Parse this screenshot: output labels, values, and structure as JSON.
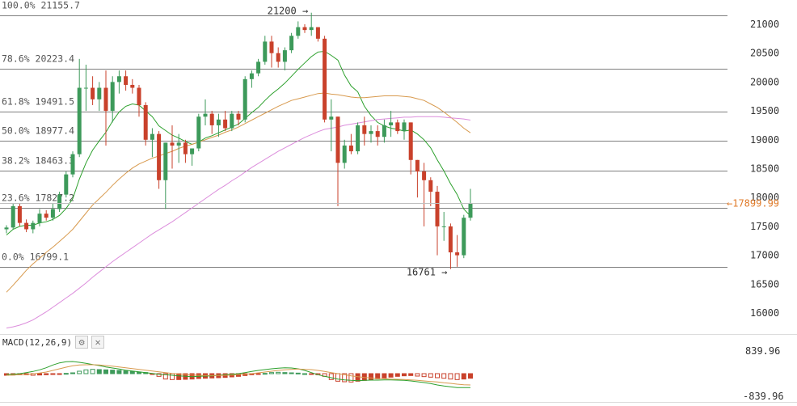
{
  "chart_data": {
    "type": "candlestick",
    "title": "",
    "xlabel": "",
    "ylabel": "",
    "ylim": [
      15650,
      21420
    ],
    "y_ticks": [
      "21000",
      "20500",
      "20000",
      "19500",
      "19000",
      "18500",
      "18000",
      "17500",
      "17000",
      "16500",
      "16000"
    ],
    "fib_levels": [
      {
        "label": "100.0% 21155.7",
        "value": 21155.7
      },
      {
        "label": "78.6% 20223.4",
        "value": 20223.4
      },
      {
        "label": "61.8% 19491.5",
        "value": 19491.5
      },
      {
        "label": "50.0% 18977.4",
        "value": 18977.4
      },
      {
        "label": "38.2% 18463.3",
        "value": 18463.3
      },
      {
        "label": "23.6% 17827.2",
        "value": 17827.2
      },
      {
        "label": "0.0% 16799.1",
        "value": 16799.1
      }
    ],
    "annotations": [
      {
        "text": "21200 →",
        "value": 21200
      },
      {
        "text": "16761 →",
        "value": 16761
      }
    ],
    "last_price": {
      "text": "←17899.99",
      "value": 17899.99
    },
    "candles": [
      [
        17450,
        17520,
        17380,
        17480
      ],
      [
        17480,
        17890,
        17450,
        17850
      ],
      [
        17850,
        17900,
        17500,
        17560
      ],
      [
        17560,
        17620,
        17400,
        17450
      ],
      [
        17450,
        17600,
        17380,
        17560
      ],
      [
        17560,
        17800,
        17500,
        17720
      ],
      [
        17720,
        17780,
        17600,
        17650
      ],
      [
        17650,
        17900,
        17600,
        17800
      ],
      [
        17800,
        18100,
        17750,
        18050
      ],
      [
        18050,
        18450,
        18000,
        18400
      ],
      [
        18400,
        18800,
        18350,
        18750
      ],
      [
        18750,
        20400,
        18700,
        19900
      ],
      [
        19900,
        20300,
        19500,
        19900
      ],
      [
        19900,
        20100,
        19600,
        19700
      ],
      [
        19700,
        20000,
        19500,
        19900
      ],
      [
        19900,
        20200,
        18900,
        19500
      ],
      [
        19500,
        20100,
        19300,
        20000
      ],
      [
        20000,
        20200,
        19800,
        20100
      ],
      [
        20100,
        20200,
        19850,
        19950
      ],
      [
        19950,
        20050,
        19800,
        19900
      ],
      [
        19900,
        19950,
        19400,
        19600
      ],
      [
        19600,
        19650,
        18900,
        19000
      ],
      [
        19000,
        19200,
        18700,
        19100
      ],
      [
        19100,
        19150,
        18150,
        18300
      ],
      [
        18300,
        18950,
        17800,
        18950
      ],
      [
        18950,
        19250,
        18500,
        18900
      ],
      [
        18900,
        19100,
        18600,
        18950
      ],
      [
        18950,
        19000,
        18600,
        18750
      ],
      [
        18750,
        18850,
        18550,
        18850
      ],
      [
        18850,
        19450,
        18800,
        19400
      ],
      [
        19400,
        19700,
        19250,
        19450
      ],
      [
        19450,
        19500,
        19100,
        19250
      ],
      [
        19250,
        19450,
        19050,
        19350
      ],
      [
        19350,
        19500,
        19150,
        19200
      ],
      [
        19200,
        19500,
        19150,
        19450
      ],
      [
        19450,
        19500,
        19250,
        19350
      ],
      [
        19350,
        20100,
        19300,
        20050
      ],
      [
        20050,
        20200,
        19900,
        20150
      ],
      [
        20150,
        20400,
        20100,
        20350
      ],
      [
        20350,
        20800,
        20300,
        20700
      ],
      [
        20700,
        20800,
        20250,
        20500
      ],
      [
        20500,
        20600,
        20250,
        20350
      ],
      [
        20350,
        20600,
        20200,
        20550
      ],
      [
        20550,
        20850,
        20500,
        20800
      ],
      [
        20800,
        21050,
        20750,
        20950
      ],
      [
        20950,
        21000,
        20850,
        20900
      ],
      [
        20900,
        21200,
        20800,
        20950
      ],
      [
        20950,
        20950,
        20700,
        20750
      ],
      [
        20750,
        20800,
        19300,
        19350
      ],
      [
        19350,
        19700,
        18800,
        19400
      ],
      [
        19400,
        19400,
        17850,
        18600
      ],
      [
        18600,
        19000,
        18500,
        18900
      ],
      [
        18900,
        19100,
        18750,
        18800
      ],
      [
        18800,
        19300,
        18750,
        19250
      ],
      [
        19250,
        19400,
        18900,
        19100
      ],
      [
        19100,
        19250,
        18950,
        19150
      ],
      [
        19150,
        19250,
        18900,
        19050
      ],
      [
        19050,
        19350,
        18950,
        19250
      ],
      [
        19250,
        19500,
        19050,
        19300
      ],
      [
        19300,
        19350,
        19100,
        19150
      ],
      [
        19150,
        19350,
        19000,
        19300
      ],
      [
        19300,
        19300,
        18400,
        18650
      ],
      [
        18650,
        18650,
        18000,
        18450
      ],
      [
        18450,
        18600,
        17500,
        18300
      ],
      [
        18300,
        18350,
        17850,
        18100
      ],
      [
        18100,
        18200,
        17000,
        17500
      ],
      [
        17500,
        17750,
        17250,
        17500
      ],
      [
        17500,
        17550,
        16761,
        17050
      ],
      [
        17050,
        17350,
        16800,
        17000
      ],
      [
        17000,
        17700,
        16950,
        17650
      ],
      [
        17650,
        18150,
        17600,
        17900
      ]
    ],
    "series": [
      {
        "name": "",
        "color": "#2ca02c",
        "values": [
          17350,
          17450,
          17500,
          17520,
          17520,
          17560,
          17580,
          17620,
          17690,
          17810,
          17980,
          18320,
          18600,
          18820,
          18980,
          19130,
          19320,
          19480,
          19580,
          19620,
          19600,
          19500,
          19400,
          19240,
          19160,
          19080,
          19030,
          18970,
          18920,
          18960,
          19030,
          19070,
          19120,
          19170,
          19220,
          19270,
          19370,
          19470,
          19560,
          19680,
          19790,
          19880,
          19980,
          20100,
          20220,
          20330,
          20440,
          20520,
          20530,
          20460,
          20380,
          20120,
          19930,
          19830,
          19580,
          19420,
          19300,
          19240,
          19200,
          19180,
          19150,
          19170,
          19100,
          19000,
          18860,
          18650,
          18460,
          18240,
          18050,
          17800,
          17680
        ]
      },
      {
        "name": "",
        "color": "#d89a4e",
        "values": [
          16360,
          16480,
          16610,
          16740,
          16850,
          16950,
          17050,
          17140,
          17240,
          17340,
          17450,
          17590,
          17730,
          17870,
          17980,
          18090,
          18210,
          18320,
          18420,
          18510,
          18580,
          18630,
          18680,
          18720,
          18760,
          18800,
          18850,
          18890,
          18920,
          18960,
          19000,
          19040,
          19080,
          19130,
          19170,
          19220,
          19280,
          19340,
          19400,
          19460,
          19520,
          19580,
          19630,
          19680,
          19710,
          19740,
          19770,
          19800,
          19810,
          19790,
          19780,
          19760,
          19740,
          19730,
          19730,
          19740,
          19750,
          19760,
          19760,
          19760,
          19750,
          19740,
          19710,
          19680,
          19620,
          19560,
          19480,
          19390,
          19300,
          19200,
          19120
        ]
      },
      {
        "name": "",
        "color": "#dc8ddc",
        "values": [
          15740,
          15760,
          15790,
          15830,
          15880,
          15950,
          16020,
          16100,
          16180,
          16260,
          16340,
          16430,
          16520,
          16620,
          16710,
          16800,
          16890,
          16970,
          17050,
          17130,
          17210,
          17290,
          17370,
          17440,
          17510,
          17580,
          17660,
          17740,
          17820,
          17900,
          17980,
          18060,
          18140,
          18210,
          18290,
          18360,
          18440,
          18520,
          18590,
          18660,
          18730,
          18800,
          18860,
          18920,
          18980,
          19040,
          19090,
          19140,
          19180,
          19200,
          19220,
          19250,
          19270,
          19290,
          19310,
          19330,
          19350,
          19360,
          19370,
          19380,
          19390,
          19390,
          19400,
          19400,
          19400,
          19400,
          19390,
          19380,
          19370,
          19360,
          19340
        ]
      }
    ],
    "macd": {
      "label": "MACD(12,26,9)",
      "ylim": [
        -839.96,
        839.96
      ],
      "top_label": "839.96",
      "bottom_label": "-839.96",
      "histogram": [
        -60,
        -50,
        -40,
        -40,
        -60,
        -50,
        -40,
        -30,
        -10,
        10,
        30,
        90,
        140,
        160,
        150,
        140,
        130,
        120,
        100,
        80,
        60,
        40,
        -10,
        -100,
        -200,
        -220,
        -220,
        -210,
        -200,
        -180,
        -170,
        -160,
        -150,
        -140,
        -120,
        -100,
        -70,
        -40,
        -20,
        10,
        40,
        50,
        40,
        30,
        20,
        0,
        -20,
        -40,
        -100,
        -220,
        -280,
        -300,
        -310,
        -280,
        -250,
        -220,
        -190,
        -160,
        -130,
        -100,
        -80,
        -70,
        -90,
        -110,
        -130,
        -150,
        -170,
        -200,
        -220,
        -200,
        -170
      ],
      "macd_line": [
        -30,
        -20,
        0,
        40,
        80,
        140,
        220,
        320,
        400,
        440,
        450,
        420,
        380,
        340,
        300,
        250,
        210,
        170,
        130,
        100,
        70,
        40,
        10,
        -20,
        -40,
        -60,
        -80,
        -100,
        -110,
        -100,
        -90,
        -80,
        -60,
        -40,
        -20,
        0,
        40,
        80,
        120,
        150,
        180,
        200,
        220,
        210,
        180,
        120,
        40,
        -40,
        -100,
        -150,
        -200,
        -230,
        -250,
        -260,
        -250,
        -240,
        -240,
        -230,
        -230,
        -240,
        -250,
        -270,
        -300,
        -330,
        -370,
        -420,
        -460,
        -490,
        -520,
        -520,
        -520
      ],
      "signal_line": [
        -60,
        -50,
        -40,
        -30,
        -10,
        20,
        60,
        120,
        180,
        240,
        290,
        320,
        330,
        330,
        320,
        300,
        280,
        250,
        220,
        190,
        160,
        130,
        100,
        70,
        40,
        10,
        -10,
        -30,
        -50,
        -60,
        -70,
        -70,
        -70,
        -60,
        -50,
        -40,
        -20,
        0,
        30,
        60,
        90,
        120,
        140,
        160,
        170,
        160,
        150,
        120,
        80,
        40,
        0,
        -40,
        -80,
        -110,
        -140,
        -160,
        -180,
        -190,
        -200,
        -210,
        -220,
        -230,
        -250,
        -270,
        -290,
        -310,
        -340,
        -360,
        -390,
        -410,
        -420
      ]
    }
  },
  "toolbar": {
    "settings_icon": "gear-icon",
    "close_icon": "close-icon",
    "settings_glyph": "⚙",
    "close_glyph": "✕"
  }
}
